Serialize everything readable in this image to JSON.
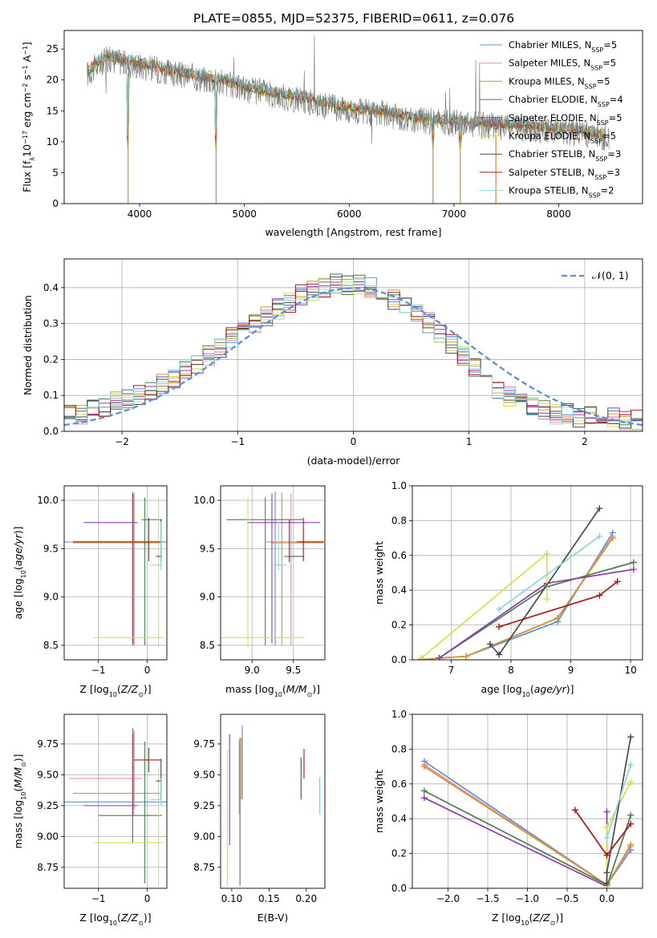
{
  "title": "PLATE=0855, MJD=52375, FIBERID=0611, z=0.076",
  "colors": {
    "Chabrier MILES": "#5b8fdc",
    "Salpeter MILES": "#e98fb0",
    "Kroupa MILES": "#d0952f",
    "Chabrier ELODIE": "#4c7d4c",
    "Salpeter ELODIE": "#8e3bb0",
    "Kroupa ELODIE": "#cde349",
    "Chabrier STELIB": "#4a4a4a",
    "Salpeter STELIB": "#a71b1b",
    "Kroupa STELIB": "#86d8dc",
    "extra_orange": "#ee7d3f",
    "normal_curve": "#5b8fdc"
  },
  "chart_data": [
    {
      "id": "spectrum",
      "type": "line",
      "xlabel": "wavelength [Angstrom, rest frame]",
      "ylabel": "Flux [f_λ10^-17 erg cm^-2 s^-1 A^-1]",
      "xlim": [
        3280,
        8800
      ],
      "ylim": [
        0,
        28
      ],
      "xticks": [
        4000,
        5000,
        6000,
        7000,
        8000
      ],
      "yticks": [
        0,
        5,
        10,
        15,
        20,
        25
      ],
      "grid": false,
      "legend_position": "top-right",
      "legend": [
        {
          "label": "Chabrier MILES, N",
          "sub": "SSP",
          "suffix": "=5"
        },
        {
          "label": "Salpeter MILES, N",
          "sub": "SSP",
          "suffix": "=5"
        },
        {
          "label": "Kroupa MILES, N",
          "sub": "SSP",
          "suffix": "=5"
        },
        {
          "label": "Chabrier ELODIE, N",
          "sub": "SSP",
          "suffix": "=4"
        },
        {
          "label": "Salpeter ELODIE, N",
          "sub": "SSP",
          "suffix": "=5"
        },
        {
          "label": "Kroupa ELODIE, N",
          "sub": "SSP",
          "suffix": "=5"
        },
        {
          "label": "Chabrier STELIB, N",
          "sub": "SSP",
          "suffix": "=3"
        },
        {
          "label": "Salpeter STELIB, N",
          "sub": "SSP",
          "suffix": "=3"
        },
        {
          "label": "Kroupa STELIB, N",
          "sub": "SSP",
          "suffix": "=2"
        }
      ],
      "continuum": [
        [
          3500,
          21.5
        ],
        [
          3700,
          24
        ],
        [
          3900,
          23
        ],
        [
          4100,
          22.5
        ],
        [
          4300,
          21.5
        ],
        [
          4500,
          21
        ],
        [
          4800,
          20
        ],
        [
          5000,
          19
        ],
        [
          5300,
          18
        ],
        [
          5600,
          17
        ],
        [
          6000,
          15.5
        ],
        [
          6300,
          15
        ],
        [
          6600,
          14
        ],
        [
          7000,
          13.5
        ],
        [
          7400,
          13
        ],
        [
          7800,
          12.5
        ],
        [
          8200,
          12
        ],
        [
          8500,
          11
        ]
      ],
      "absorption_features": [
        [
          3890,
          0
        ],
        [
          3933,
          17
        ],
        [
          3968,
          14
        ],
        [
          4102,
          15
        ],
        [
          4305,
          12
        ],
        [
          4340,
          17
        ],
        [
          4730,
          0
        ],
        [
          5175,
          14
        ],
        [
          5890,
          14
        ],
        [
          6800,
          0
        ],
        [
          7060,
          0
        ],
        [
          7400,
          2
        ]
      ]
    },
    {
      "id": "residuals",
      "type": "line",
      "xlabel": "(data-model)/error",
      "ylabel": "Normed distribution",
      "xlim": [
        -2.5,
        2.5
      ],
      "ylim": [
        0,
        0.48
      ],
      "xticks": [
        -2,
        -1,
        0,
        1,
        2
      ],
      "yticks": [
        0.0,
        0.1,
        0.2,
        0.3,
        0.4
      ],
      "grid": true,
      "legend_position": "top-right",
      "legend": [
        {
          "label": "𝒩(0, 1)",
          "style": "dashed"
        }
      ],
      "bin_edges_start": -2.5,
      "bin_width": 0.1,
      "approx_hist_envelope": [
        0.05,
        0.05,
        0.06,
        0.07,
        0.08,
        0.09,
        0.1,
        0.11,
        0.13,
        0.15,
        0.17,
        0.19,
        0.21,
        0.23,
        0.26,
        0.28,
        0.3,
        0.32,
        0.34,
        0.36,
        0.38,
        0.39,
        0.4,
        0.41,
        0.41,
        0.41,
        0.4,
        0.39,
        0.37,
        0.35,
        0.33,
        0.3,
        0.27,
        0.24,
        0.21,
        0.18,
        0.15,
        0.12,
        0.1,
        0.08,
        0.07,
        0.06,
        0.05,
        0.05,
        0.04,
        0.04,
        0.04,
        0.04,
        0.03,
        0.03
      ]
    },
    {
      "id": "age-vs-Z",
      "type": "scatter",
      "xlabel": "Z [log10(Z/Z⊙)]",
      "ylabel": "age  [log10(age/yr)]",
      "xlim": [
        -1.7,
        0.4
      ],
      "ylim": [
        8.35,
        10.15
      ],
      "xticks": [
        -1,
        0
      ],
      "yticks": [
        8.5,
        9.0,
        9.5,
        10.0
      ],
      "grid": true,
      "points": [
        {
          "model": "Chabrier MILES",
          "x": -0.3,
          "xerr": [
            1.55,
            0.7
          ],
          "y": 9.57,
          "yerr": [
            1.07,
            0.52
          ]
        },
        {
          "model": "Salpeter MILES",
          "x": -0.28,
          "xerr": [
            1.32,
            0.18
          ],
          "y": 9.57,
          "yerr": [
            1.07,
            0.5
          ]
        },
        {
          "model": "Kroupa MILES",
          "x": -0.27,
          "xerr": [
            1.25,
            0.55
          ],
          "y": 9.56,
          "yerr": [
            1.06,
            0.52
          ]
        },
        {
          "model": "Chabrier ELODIE",
          "x": -0.05,
          "xerr": [
            0.07,
            0.35
          ],
          "y": 9.8,
          "yerr": [
            1.3,
            0.23
          ]
        },
        {
          "model": "Salpeter ELODIE",
          "x": -0.3,
          "xerr": [
            1.0,
            0.1
          ],
          "y": 9.77,
          "yerr": [
            1.25,
            0.3
          ]
        },
        {
          "model": "Kroupa ELODIE",
          "x": 0.23,
          "xerr": [
            1.32,
            0.1
          ],
          "y": 8.58,
          "yerr": [
            0.1,
            1.45
          ]
        },
        {
          "model": "Chabrier STELIB",
          "x": 0.28,
          "xerr": [
            0.1,
            0.02
          ],
          "y": 9.42,
          "yerr": [
            0.06,
            0.38
          ]
        },
        {
          "model": "Salpeter STELIB",
          "x": 0.03,
          "xerr": [
            1.55,
            0.25
          ],
          "y": 9.57,
          "yerr": [
            0.2,
            0.25
          ]
        },
        {
          "model": "Kroupa STELIB",
          "x": 0.28,
          "xerr": [
            0.22,
            0.02
          ],
          "y": 9.33,
          "yerr": [
            0.05,
            0.45
          ]
        }
      ]
    },
    {
      "id": "age-vs-mass",
      "type": "scatter",
      "xlabel": "mass [log10(M/M⊙)]",
      "ylabel": "",
      "xlim": [
        8.62,
        9.88
      ],
      "ylim": [
        8.35,
        10.15
      ],
      "xticks": [
        9.0,
        9.5
      ],
      "yticks": [
        8.5,
        9.0,
        9.5,
        10.0
      ],
      "grid": true,
      "points": [
        {
          "model": "Chabrier MILES",
          "x": 9.28,
          "xerr": [
            0.1,
            0.55
          ],
          "y": 9.57,
          "yerr": [
            1.07,
            0.52
          ]
        },
        {
          "model": "Salpeter MILES",
          "x": 9.47,
          "xerr": [
            0.3,
            0.4
          ],
          "y": 9.57,
          "yerr": [
            1.07,
            0.5
          ]
        },
        {
          "model": "Kroupa MILES",
          "x": 9.36,
          "xerr": [
            0.13,
            0.5
          ],
          "y": 9.56,
          "yerr": [
            1.06,
            0.52
          ]
        },
        {
          "model": "Chabrier ELODIE",
          "x": 9.16,
          "xerr": [
            0.47,
            0.45
          ],
          "y": 9.8,
          "yerr": [
            1.3,
            0.23
          ]
        },
        {
          "model": "Salpeter ELODIE",
          "x": 9.24,
          "xerr": [
            0.3,
            0.58
          ],
          "y": 9.77,
          "yerr": [
            1.25,
            0.3
          ]
        },
        {
          "model": "Kroupa ELODIE",
          "x": 8.95,
          "xerr": [
            0.35,
            0.68
          ],
          "y": 8.58,
          "yerr": [
            0.1,
            1.45
          ]
        },
        {
          "model": "Chabrier STELIB",
          "x": 9.45,
          "xerr": [
            0.06,
            0.18
          ],
          "y": 9.42,
          "yerr": [
            0.06,
            0.38
          ]
        },
        {
          "model": "Salpeter STELIB",
          "x": 9.62,
          "xerr": [
            0.08,
            0.25
          ],
          "y": 9.57,
          "yerr": [
            0.2,
            0.25
          ]
        },
        {
          "model": "Kroupa STELIB",
          "x": 9.32,
          "xerr": [
            0.1,
            0.1
          ],
          "y": 9.33,
          "yerr": [
            0.05,
            0.45
          ]
        }
      ]
    },
    {
      "id": "weight-vs-age",
      "type": "line",
      "xlabel": "age  [log10(age/yr)]",
      "ylabel": "mass weight",
      "xlim": [
        6.35,
        10.2
      ],
      "ylim": [
        0,
        1.0
      ],
      "xticks": [
        7,
        8,
        9,
        10
      ],
      "yticks": [
        0.0,
        0.2,
        0.4,
        0.6,
        0.8,
        1.0
      ],
      "grid": true,
      "series": [
        {
          "model": "Chabrier MILES",
          "x": [
            6.5,
            6.8,
            7.25,
            8.78,
            9.7
          ],
          "y": [
            0.0,
            0.01,
            0.02,
            0.22,
            0.73
          ]
        },
        {
          "model": "Salpeter MILES",
          "x": [
            6.5,
            6.8,
            7.25,
            8.78,
            9.7
          ],
          "y": [
            0.0,
            0.01,
            0.02,
            0.24,
            0.71
          ]
        },
        {
          "model": "Kroupa MILES",
          "x": [
            6.5,
            6.8,
            7.25,
            8.78,
            9.7
          ],
          "y": [
            0.0,
            0.01,
            0.02,
            0.24,
            0.7
          ]
        },
        {
          "model": "Chabrier ELODIE",
          "x": [
            6.8,
            8.6,
            10.05
          ],
          "y": [
            0.01,
            0.42,
            0.56
          ]
        },
        {
          "model": "Salpeter ELODIE",
          "x": [
            6.8,
            8.6,
            10.05
          ],
          "y": [
            0.01,
            0.44,
            0.52
          ]
        },
        {
          "model": "Kroupa ELODIE",
          "x": [
            6.5,
            8.6,
            8.6
          ],
          "y": [
            0.01,
            0.61,
            0.35
          ]
        },
        {
          "model": "Chabrier STELIB",
          "x": [
            7.65,
            7.8,
            9.48
          ],
          "y": [
            0.09,
            0.03,
            0.87
          ]
        },
        {
          "model": "Salpeter STELIB",
          "x": [
            7.8,
            9.48,
            9.78
          ],
          "y": [
            0.19,
            0.37,
            0.45
          ]
        },
        {
          "model": "Kroupa STELIB",
          "x": [
            7.8,
            9.48
          ],
          "y": [
            0.29,
            0.71
          ]
        }
      ]
    },
    {
      "id": "mass-vs-Z",
      "type": "scatter",
      "xlabel": "Z [log10(Z/Z⊙)]",
      "ylabel": "mass [log10(M/M⊙)]",
      "xlim": [
        -1.7,
        0.4
      ],
      "ylim": [
        8.58,
        9.99
      ],
      "xticks": [
        -1,
        0
      ],
      "yticks": [
        8.75,
        9.0,
        9.25,
        9.5,
        9.75
      ],
      "grid": true,
      "points": [
        {
          "model": "Chabrier MILES",
          "x": -0.3,
          "xerr": [
            1.55,
            0.7
          ],
          "y": 9.28,
          "yerr": [
            0.1,
            0.6
          ]
        },
        {
          "model": "Salpeter MILES",
          "x": -0.28,
          "xerr": [
            1.32,
            0.18
          ],
          "y": 9.47,
          "yerr": [
            0.3,
            0.4
          ]
        },
        {
          "model": "Kroupa MILES",
          "x": -0.27,
          "xerr": [
            1.25,
            0.55
          ],
          "y": 9.35,
          "yerr": [
            0.13,
            0.5
          ]
        },
        {
          "model": "Chabrier ELODIE",
          "x": -0.05,
          "xerr": [
            0.95,
            0.35
          ],
          "y": 9.17,
          "yerr": [
            0.55,
            0.6
          ]
        },
        {
          "model": "Salpeter ELODIE",
          "x": -0.3,
          "xerr": [
            1.0,
            0.1
          ],
          "y": 9.25,
          "yerr": [
            0.3,
            0.58
          ]
        },
        {
          "model": "Kroupa ELODIE",
          "x": 0.23,
          "xerr": [
            1.32,
            0.1
          ],
          "y": 8.95,
          "yerr": [
            0.35,
            0.6
          ]
        },
        {
          "model": "Chabrier STELIB",
          "x": 0.28,
          "xerr": [
            0.1,
            0.02
          ],
          "y": 9.45,
          "yerr": [
            0.15,
            0.18
          ]
        },
        {
          "model": "Salpeter STELIB",
          "x": 0.03,
          "xerr": [
            0.3,
            0.25
          ],
          "y": 9.62,
          "yerr": [
            0.1,
            0.1
          ]
        },
        {
          "model": "Kroupa STELIB",
          "x": 0.28,
          "xerr": [
            0.22,
            0.02
          ],
          "y": 9.3,
          "yerr": [
            0.05,
            0.17
          ]
        }
      ]
    },
    {
      "id": "mass-vs-ebv",
      "type": "scatter",
      "xlabel": "E(B-V)",
      "ylabel": "",
      "xlim": [
        0.085,
        0.225
      ],
      "ylim": [
        8.58,
        9.99
      ],
      "xticks": [
        0.1,
        0.15,
        0.2
      ],
      "yticks": [
        8.75,
        9.0,
        9.25,
        9.5,
        9.75
      ],
      "grid": false,
      "points": [
        {
          "model": "Chabrier MILES",
          "x": 0.114,
          "y": 9.6,
          "yerr": [
            0.3,
            0.3
          ]
        },
        {
          "model": "Salpeter MILES",
          "x": 0.11,
          "y": 9.48,
          "yerr": [
            0.3,
            0.3
          ]
        },
        {
          "model": "Kroupa MILES",
          "x": 0.113,
          "y": 9.45,
          "yerr": [
            0.15,
            0.35
          ]
        },
        {
          "model": "Chabrier ELODIE",
          "x": 0.111,
          "y": 9.2,
          "yerr": [
            0.6,
            0.6
          ]
        },
        {
          "model": "Salpeter ELODIE",
          "x": 0.097,
          "y": 9.38,
          "yerr": [
            0.45,
            0.45
          ]
        },
        {
          "model": "Kroupa ELODIE",
          "x": 0.094,
          "y": 9.15,
          "yerr": [
            0.55,
            0.55
          ]
        },
        {
          "model": "Chabrier STELIB",
          "x": 0.193,
          "y": 9.47,
          "yerr": [
            0.17,
            0.17
          ]
        },
        {
          "model": "Salpeter STELIB",
          "x": 0.197,
          "y": 9.59,
          "yerr": [
            0.12,
            0.12
          ]
        },
        {
          "model": "Kroupa STELIB",
          "x": 0.218,
          "y": 9.33,
          "yerr": [
            0.15,
            0.15
          ]
        }
      ]
    },
    {
      "id": "weight-vs-Z",
      "type": "line",
      "xlabel": "Z [log10(Z/Z⊙)]",
      "ylabel": "mass weight",
      "xlim": [
        -2.45,
        0.45
      ],
      "ylim": [
        0,
        1.0
      ],
      "xticks": [
        -2.0,
        -1.5,
        -1.0,
        -0.5,
        0.0
      ],
      "yticks": [
        0.0,
        0.2,
        0.4,
        0.6,
        0.8,
        1.0
      ],
      "grid": true,
      "series": [
        {
          "model": "Chabrier MILES",
          "x": [
            -2.3,
            0.0,
            0.3
          ],
          "y": [
            0.73,
            0.02,
            0.22
          ]
        },
        {
          "model": "Salpeter MILES",
          "x": [
            -2.3,
            0.0,
            0.3
          ],
          "y": [
            0.71,
            0.02,
            0.24
          ]
        },
        {
          "model": "Kroupa MILES",
          "x": [
            -2.3,
            0.0,
            0.3
          ],
          "y": [
            0.7,
            0.02,
            0.25
          ]
        },
        {
          "model": "Chabrier ELODIE",
          "x": [
            -2.3,
            0.0,
            0.0,
            0.3
          ],
          "y": [
            0.56,
            0.02,
            0.01,
            0.42
          ]
        },
        {
          "model": "Salpeter ELODIE",
          "x": [
            -2.3,
            0.0,
            0.0
          ],
          "y": [
            0.52,
            0.01,
            0.44
          ]
        },
        {
          "model": "Kroupa ELODIE",
          "x": [
            0.0,
            0.0,
            0.3
          ],
          "y": [
            0.01,
            0.35,
            0.61
          ]
        },
        {
          "model": "Chabrier STELIB",
          "x": [
            0.0,
            0.0,
            0.3
          ],
          "y": [
            0.03,
            0.09,
            0.87
          ]
        },
        {
          "model": "Salpeter STELIB",
          "x": [
            -0.4,
            0.0,
            0.3
          ],
          "y": [
            0.45,
            0.19,
            0.37
          ]
        },
        {
          "model": "Kroupa STELIB",
          "x": [
            0.0,
            0.3
          ],
          "y": [
            0.29,
            0.71
          ]
        }
      ]
    }
  ]
}
